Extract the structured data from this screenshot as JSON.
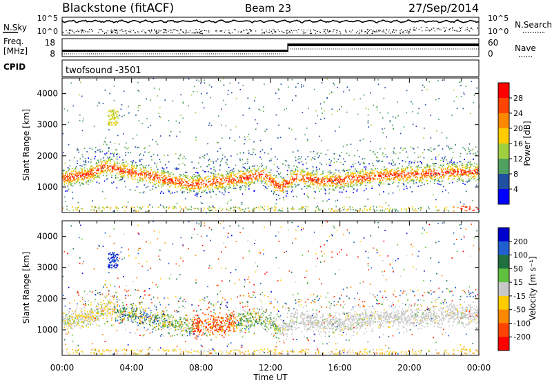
{
  "header": {
    "title_left": "Blackstone (fitACF)",
    "title_center": "Beam 23",
    "title_right": "27/Sep/2014"
  },
  "noise_panel": {
    "left_label": "N.Sky",
    "right_label": "N.Search",
    "y_ticks": [
      "10^5",
      "10^0"
    ]
  },
  "freq_panel": {
    "left_label_1": "Freq.",
    "left_label_2": "[MHz]",
    "left_ticks": [
      "18",
      "8"
    ],
    "right_label": "Nave",
    "right_ticks": [
      "60",
      "0"
    ]
  },
  "cpid_panel": {
    "label": "CPID",
    "program": "twofsound  -3501"
  },
  "x_axis": {
    "label": "Time UT",
    "tick_labels": [
      "00:00",
      "04:00",
      "08:00",
      "12:00",
      "16:00",
      "20:00",
      "00:00"
    ]
  },
  "power_colorbar": {
    "label": "Power [dB]",
    "ticks": [
      "28",
      "24",
      "20",
      "16",
      "12",
      "8",
      "4"
    ],
    "colors": [
      "#ff0000",
      "#ff4400",
      "#ff8800",
      "#ffcc00",
      "#a0d040",
      "#50a060",
      "#2050a0",
      "#0000ff"
    ]
  },
  "velocity_colorbar": {
    "label": "Velocity [m s⁻¹]",
    "ticks": [
      "200",
      "100",
      "50",
      "15",
      "-15",
      "-50",
      "-100",
      "-200"
    ],
    "colors": [
      "#0000cc",
      "#2060d0",
      "#207040",
      "#60c040",
      "#c8c8c8",
      "#ffcc00",
      "#ff8800",
      "#ff4400",
      "#ff0000"
    ]
  },
  "chart_data": [
    {
      "type": "heatmap",
      "panel": "power",
      "ylabel": "Slant Range [km]",
      "xlabel": "",
      "ylim": [
        180,
        4500
      ],
      "xlim_hours": [
        0,
        24
      ],
      "y_tick_labels": [
        "1000",
        "2000",
        "3000",
        "4000"
      ],
      "y_ticks": [
        1000,
        2000,
        3000,
        4000
      ],
      "x_tick_labels": [
        "00:00",
        "04:00",
        "08:00",
        "12:00",
        "16:00",
        "20:00",
        "00:00"
      ],
      "colorbar_label": "Power [dB]",
      "band_center_km": [
        [
          0,
          1300
        ],
        [
          1.5,
          1420
        ],
        [
          2.5,
          1700
        ],
        [
          3.3,
          1550
        ],
        [
          4.5,
          1450
        ],
        [
          6,
          1250
        ],
        [
          7.5,
          1100
        ],
        [
          9,
          1200
        ],
        [
          10.5,
          1300
        ],
        [
          11.5,
          1450
        ],
        [
          12.5,
          1000
        ],
        [
          13.5,
          1350
        ],
        [
          15,
          1200
        ],
        [
          17,
          1300
        ],
        [
          19,
          1400
        ],
        [
          21,
          1450
        ],
        [
          23,
          1500
        ],
        [
          24,
          1500
        ]
      ],
      "peak_power_dB": 30
    },
    {
      "type": "heatmap",
      "panel": "velocity",
      "ylabel": "Slant Range [km]",
      "xlabel": "Time UT",
      "ylim": [
        180,
        4500
      ],
      "xlim_hours": [
        0,
        24
      ],
      "y_tick_labels": [
        "1000",
        "2000",
        "3000",
        "4000"
      ],
      "y_ticks": [
        1000,
        2000,
        3000,
        4000
      ],
      "x_tick_labels": [
        "00:00",
        "04:00",
        "08:00",
        "12:00",
        "16:00",
        "20:00",
        "00:00"
      ],
      "colorbar_label": "Velocity [m s⁻¹]",
      "vlim": [
        -250,
        250
      ]
    }
  ]
}
